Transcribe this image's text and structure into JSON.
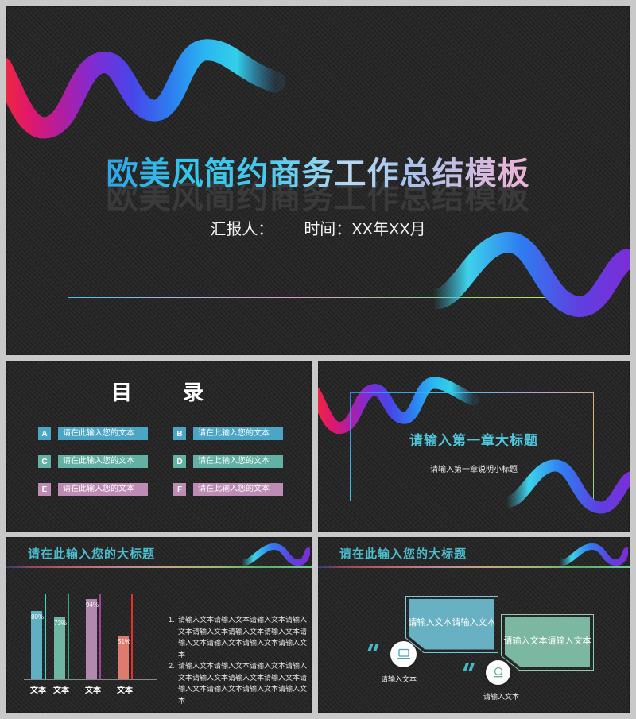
{
  "slide1": {
    "title": "欧美风简约商务工作总结模板",
    "presenter": "汇报人：",
    "time": "时间：XX年XX月"
  },
  "slide2": {
    "title": "目　　录",
    "items": [
      {
        "letter": "A",
        "text": "请在此输入您的文本",
        "color": "#4ba5c4"
      },
      {
        "letter": "B",
        "text": "请在此输入您的文本",
        "color": "#4ba5c4"
      },
      {
        "letter": "C",
        "text": "请在此输入您的文本",
        "color": "#63b1a2"
      },
      {
        "letter": "D",
        "text": "请在此输入您的文本",
        "color": "#63b1a2"
      },
      {
        "letter": "E",
        "text": "请在此输入您的文本",
        "color": "#bd8bb4"
      },
      {
        "letter": "F",
        "text": "请在此输入您的文本",
        "color": "#bd8bb4"
      }
    ]
  },
  "slide3": {
    "title": "请输入第一章大标题",
    "subtitle": "请输入第一章说明小标题"
  },
  "slide4": {
    "title": "请在此输入您的大标题",
    "chart_data": {
      "type": "bar",
      "categories": [
        "文本",
        "文本",
        "文本",
        "文本"
      ],
      "values": [
        80,
        73,
        94,
        51
      ],
      "value_labels": [
        "80%",
        "73%",
        "94%",
        "51%"
      ],
      "bar_colors": [
        "#5fb0c2",
        "#6fb5a3",
        "#b289ae",
        "#df7a6f"
      ],
      "accent_colors": [
        "#35d8ce",
        "#2fae86",
        "#a2439b",
        "#e3312b"
      ],
      "ylim": [
        0,
        100
      ],
      "grid": false,
      "legend": false
    },
    "list": [
      {
        "num": "1.",
        "text": "请输入文本请输入文本请输入文本请输入文本请输入文本请输入文本请输入文本请输入文本请输入文本请输入文本请输入文本"
      },
      {
        "num": "2.",
        "text": "请输入文本请输入文本请输入文本请输入文本请输入文本请输入文本请输入文本请输入文本请输入文本请输入文本请输入文本"
      }
    ]
  },
  "slide5": {
    "title": "请在此输入您的大标题",
    "bubbles": [
      {
        "text": "请输入文本请输入文本",
        "caption": "请输入文本",
        "color": "#68b1c2",
        "border": "#7fc6d4"
      },
      {
        "text": "请输入文本请输入文本",
        "caption": "请输入文本",
        "color": "#7cb7a1",
        "border": "#90c9b4"
      }
    ]
  },
  "colors": {
    "accent_cyan": "#4abccb",
    "slide_background": "#2b2b2b",
    "page_gap": "#c9c9c9"
  }
}
